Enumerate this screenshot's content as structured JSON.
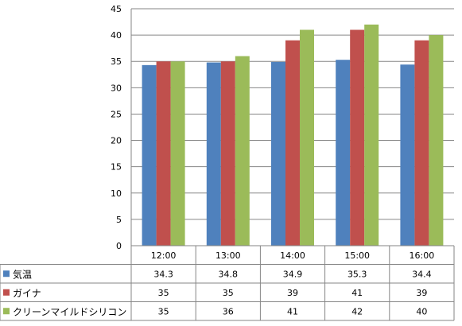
{
  "chart_data": {
    "type": "bar",
    "categories": [
      "12:00",
      "13:00",
      "14:00",
      "15:00",
      "16:00"
    ],
    "series": [
      {
        "name": "気温",
        "color": "#4F81BD",
        "values": [
          34.3,
          34.8,
          34.9,
          35.3,
          34.4
        ]
      },
      {
        "name": "ガイナ",
        "color": "#C0504D",
        "values": [
          35,
          35,
          39,
          41,
          39
        ]
      },
      {
        "name": "クリーンマイルドシリコン",
        "color": "#9BBB59",
        "values": [
          35,
          36,
          41,
          42,
          40
        ]
      }
    ],
    "ylim": [
      0,
      45
    ],
    "yticks": [
      "0",
      "5",
      "10",
      "15",
      "20",
      "25",
      "30",
      "35",
      "40",
      "45"
    ],
    "grid": true,
    "legend": "data-table"
  }
}
